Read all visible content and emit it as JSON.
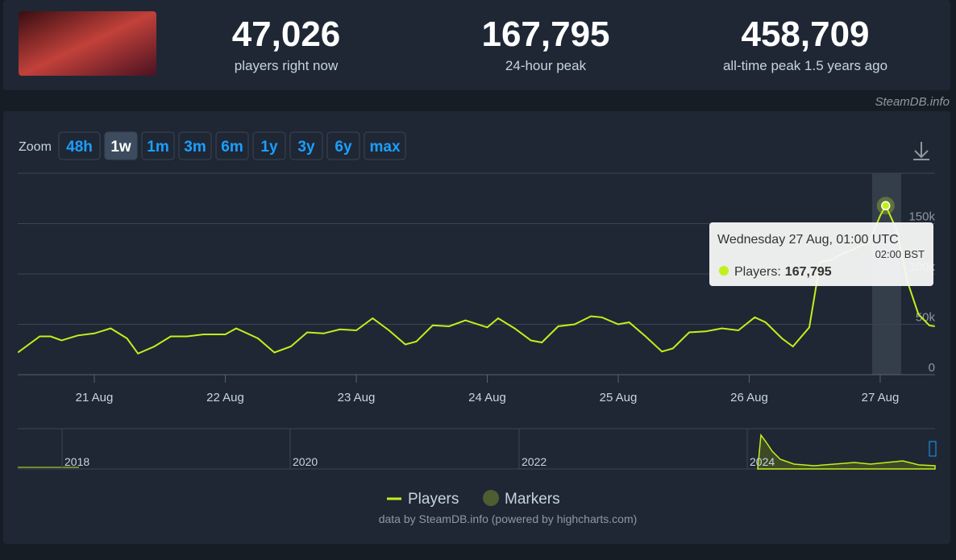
{
  "header": {
    "stats": [
      {
        "value": "47,026",
        "label": "players right now"
      },
      {
        "value": "167,795",
        "label": "24-hour peak"
      },
      {
        "value": "458,709",
        "label": "all-time peak 1.5 years ago"
      }
    ],
    "source": "SteamDB.info"
  },
  "zoom": {
    "label": "Zoom",
    "buttons": [
      "48h",
      "1w",
      "1m",
      "3m",
      "6m",
      "1y",
      "3y",
      "6y",
      "max"
    ],
    "active": "1w"
  },
  "chart_data": {
    "type": "line",
    "x": [
      "20 Aug 10:00",
      "20 Aug 14:00",
      "20 Aug 16:00",
      "20 Aug 18:00",
      "20 Aug 21:00",
      "21 Aug 00:00",
      "21 Aug 03:00",
      "21 Aug 06:00",
      "21 Aug 08:00",
      "21 Aug 11:00",
      "21 Aug 14:00",
      "21 Aug 17:00",
      "21 Aug 20:00",
      "22 Aug 00:00",
      "22 Aug 02:00",
      "22 Aug 06:00",
      "22 Aug 09:00",
      "22 Aug 12:00",
      "22 Aug 15:00",
      "22 Aug 18:00",
      "22 Aug 21:00",
      "23 Aug 00:00",
      "23 Aug 03:00",
      "23 Aug 06:00",
      "23 Aug 09:00",
      "23 Aug 11:00",
      "23 Aug 14:00",
      "23 Aug 17:00",
      "23 Aug 20:00",
      "24 Aug 00:00",
      "24 Aug 02:00",
      "24 Aug 05:00",
      "24 Aug 08:00",
      "24 Aug 10:00",
      "24 Aug 13:00",
      "24 Aug 16:00",
      "24 Aug 19:00",
      "24 Aug 21:00",
      "25 Aug 00:00",
      "25 Aug 02:00",
      "25 Aug 05:00",
      "25 Aug 08:00",
      "25 Aug 10:00",
      "25 Aug 13:00",
      "25 Aug 16:00",
      "25 Aug 19:00",
      "25 Aug 22:00",
      "26 Aug 01:00",
      "26 Aug 03:00",
      "26 Aug 06:00",
      "26 Aug 08:00",
      "26 Aug 11:00",
      "26 Aug 13:00",
      "26 Aug 15:00",
      "26 Aug 17:00",
      "26 Aug 19:00",
      "26 Aug 22:00",
      "27 Aug 00:00",
      "27 Aug 01:00",
      "27 Aug 03:00",
      "27 Aug 05:00",
      "27 Aug 07:00",
      "27 Aug 09:00",
      "27 Aug 10:00"
    ],
    "series": [
      {
        "name": "Players",
        "color": "#c2f01a",
        "values": [
          22000,
          38000,
          38000,
          34000,
          39000,
          41000,
          46000,
          36000,
          21000,
          28000,
          38000,
          38000,
          40000,
          40000,
          46000,
          36000,
          22000,
          28000,
          42000,
          41000,
          45000,
          44000,
          56000,
          44000,
          30000,
          33000,
          49000,
          48000,
          54000,
          47000,
          56000,
          46000,
          34000,
          32000,
          48000,
          50000,
          58000,
          57000,
          50000,
          52000,
          38000,
          23000,
          26000,
          42000,
          43000,
          46000,
          44000,
          57000,
          52000,
          36000,
          28000,
          47000,
          112000,
          114000,
          120000,
          124000,
          132000,
          158000,
          167795,
          144000,
          92000,
          60000,
          49000,
          48000
        ]
      }
    ],
    "markers_label": "Markers",
    "ylim": [
      0,
      200000
    ],
    "yticks": [
      {
        "value": 0,
        "label": "0"
      },
      {
        "value": 50000,
        "label": "50k"
      },
      {
        "value": 100000,
        "label": "100k"
      },
      {
        "value": 150000,
        "label": "150k"
      }
    ],
    "xticks": [
      "21 Aug",
      "22 Aug",
      "23 Aug",
      "24 Aug",
      "25 Aug",
      "26 Aug",
      "27 Aug"
    ],
    "grid": true,
    "tooltip": {
      "title": "Wednesday 27 Aug, 01:00 UTC",
      "subtitle": "02:00 BST",
      "label": "Players:",
      "value": "167,795",
      "index": 58
    },
    "navigator": {
      "labels": [
        "2018",
        "2020",
        "2022",
        "2024"
      ]
    },
    "credits": "data by SteamDB.info (powered by highcharts.com)"
  }
}
